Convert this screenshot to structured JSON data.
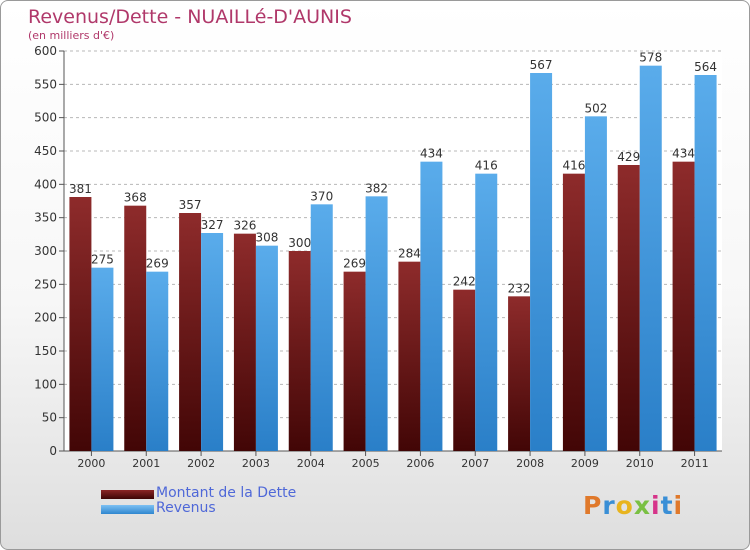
{
  "title": "Revenus/Dette - NUAILLé-D'AUNIS",
  "subtitle": "(en milliers d'€)",
  "colors": {
    "debt": "#7a1a1a",
    "revenue": "#4a9fe0",
    "title": "#b0386a",
    "legend_text": "#4f68d8"
  },
  "logo": {
    "text": "Proxiti"
  },
  "chart_data": {
    "type": "bar",
    "categories": [
      "2000",
      "2001",
      "2002",
      "2003",
      "2004",
      "2005",
      "2006",
      "2007",
      "2008",
      "2009",
      "2010",
      "2011"
    ],
    "series": [
      {
        "name": "Montant de la Dette",
        "values": [
          381,
          368,
          357,
          326,
          300,
          269,
          284,
          242,
          232,
          416,
          429,
          434
        ]
      },
      {
        "name": "Revenus",
        "values": [
          275,
          269,
          327,
          308,
          370,
          382,
          434,
          416,
          567,
          502,
          578,
          564
        ]
      }
    ],
    "ylim": [
      0,
      600
    ],
    "yticks": [
      "0",
      "50",
      "100",
      "150",
      "200",
      "250",
      "300",
      "350",
      "400",
      "450",
      "500",
      "550",
      "600"
    ],
    "grid": true,
    "legend": "bottom-left"
  }
}
